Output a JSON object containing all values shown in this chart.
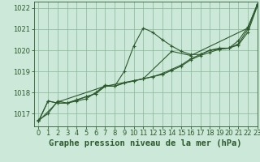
{
  "background_color": "#cce8d8",
  "plot_bg_color": "#cce8d8",
  "grid_color": "#88b898",
  "line_color": "#2d5a2d",
  "title": "Graphe pression niveau de la mer (hPa)",
  "xlim": [
    -0.5,
    23
  ],
  "ylim": [
    1016.4,
    1022.3
  ],
  "yticks": [
    1017,
    1018,
    1019,
    1020,
    1021,
    1022
  ],
  "xticks": [
    0,
    1,
    2,
    3,
    4,
    5,
    6,
    7,
    8,
    9,
    10,
    11,
    12,
    13,
    14,
    15,
    16,
    17,
    18,
    19,
    20,
    21,
    22,
    23
  ],
  "series1_x": [
    0,
    1,
    2,
    3,
    4,
    5,
    6,
    7,
    8,
    9,
    10,
    11,
    12,
    13,
    14,
    15,
    16,
    17,
    18,
    19,
    20,
    21,
    22,
    23
  ],
  "series1_y": [
    1016.7,
    1017.0,
    1017.6,
    1017.5,
    1017.6,
    1017.7,
    1018.0,
    1018.35,
    1018.3,
    1019.0,
    1020.2,
    1021.05,
    1020.85,
    1020.5,
    1020.2,
    1019.95,
    1019.8,
    1019.8,
    1020.0,
    1020.1,
    1020.1,
    1020.45,
    1021.1,
    1022.15
  ],
  "series2_x": [
    0,
    1,
    2,
    3,
    4,
    5,
    6,
    7,
    8,
    9,
    10,
    11,
    12,
    13,
    14,
    15,
    16,
    17,
    18,
    19,
    20,
    21,
    22,
    23
  ],
  "series2_y": [
    1016.65,
    1017.6,
    1017.5,
    1017.5,
    1017.65,
    1017.8,
    1017.95,
    1018.3,
    1018.3,
    1018.45,
    1018.55,
    1018.65,
    1018.75,
    1018.85,
    1019.05,
    1019.25,
    1019.55,
    1019.75,
    1019.9,
    1020.05,
    1020.1,
    1020.25,
    1020.85,
    1022.1
  ],
  "series3_x": [
    0,
    1,
    2,
    3,
    4,
    5,
    6,
    7,
    8,
    9,
    10,
    11,
    12,
    13,
    14,
    15,
    16,
    17,
    18,
    19,
    20,
    21,
    22,
    23
  ],
  "series3_y": [
    1016.65,
    1017.6,
    1017.5,
    1017.5,
    1017.65,
    1017.8,
    1017.95,
    1018.3,
    1018.3,
    1018.45,
    1018.55,
    1018.65,
    1018.75,
    1018.9,
    1019.1,
    1019.3,
    1019.6,
    1019.8,
    1020.0,
    1020.05,
    1020.1,
    1020.3,
    1021.0,
    1022.15
  ],
  "series4_x": [
    0,
    2,
    7,
    11,
    14,
    16,
    22,
    23
  ],
  "series4_y": [
    1016.65,
    1017.55,
    1018.3,
    1018.65,
    1019.95,
    1019.75,
    1021.05,
    1022.2
  ],
  "title_fontsize": 7.5,
  "tick_fontsize": 6
}
